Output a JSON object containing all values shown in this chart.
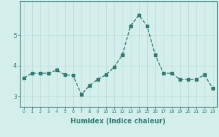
{
  "x": [
    0,
    1,
    2,
    3,
    4,
    5,
    6,
    7,
    8,
    9,
    10,
    11,
    12,
    13,
    14,
    15,
    16,
    17,
    18,
    19,
    20,
    21,
    22,
    23
  ],
  "y": [
    3.6,
    3.75,
    3.75,
    3.75,
    3.85,
    3.7,
    3.68,
    3.05,
    3.35,
    3.55,
    3.7,
    3.95,
    4.35,
    5.3,
    5.65,
    5.3,
    4.35,
    3.75,
    3.75,
    3.55,
    3.55,
    3.55,
    3.7,
    3.25
  ],
  "line_color": "#2e7d6e",
  "marker": "s",
  "markersize": 2.5,
  "linewidth": 1.0,
  "linestyle": "--",
  "xlabel": "Humidex (Indice chaleur)",
  "xlabel_fontsize": 7,
  "yticks": [
    3,
    4,
    5
  ],
  "xticks": [
    0,
    1,
    2,
    3,
    4,
    5,
    6,
    7,
    8,
    9,
    10,
    11,
    12,
    13,
    14,
    15,
    16,
    17,
    18,
    19,
    20,
    21,
    22,
    23
  ],
  "bg_color": "#d4eeec",
  "grid_color": "#b8d8d5",
  "tick_color": "#2e7d6e",
  "axis_color": "#2e7d6e",
  "xlim_left": -0.5,
  "xlim_right": 23.5,
  "ylim_bottom": 2.65,
  "ylim_top": 6.1
}
